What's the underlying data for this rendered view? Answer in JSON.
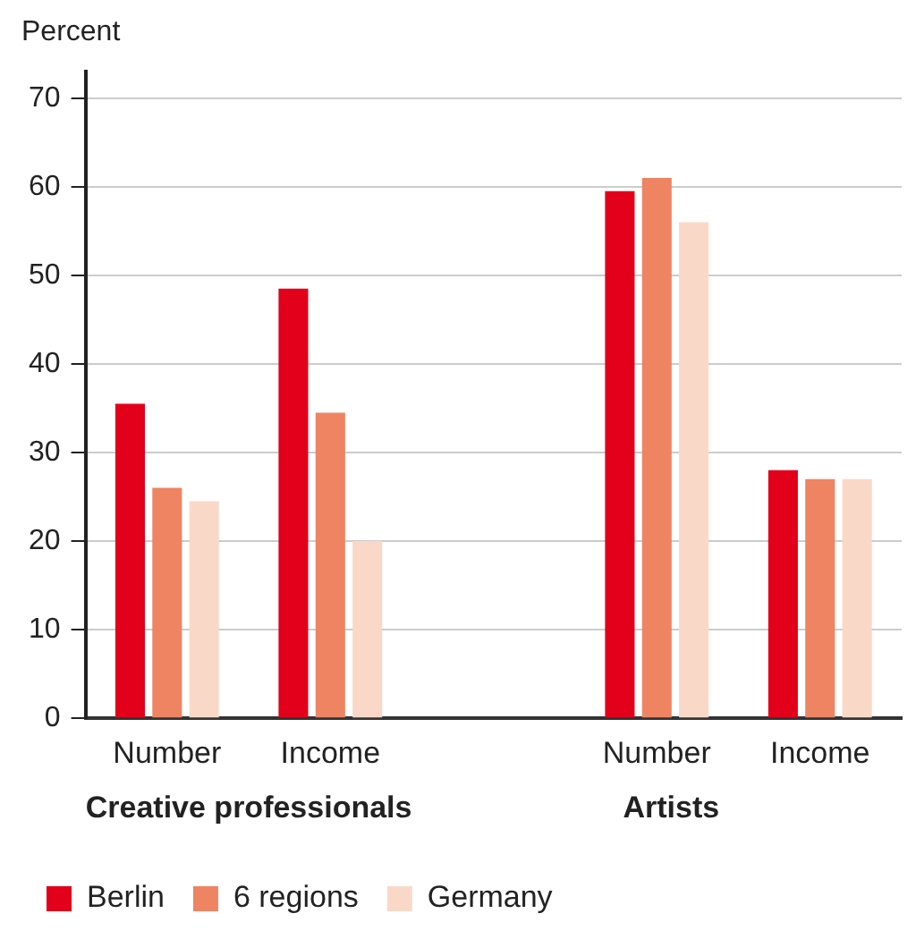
{
  "chart_data": {
    "type": "bar",
    "ylabel": "Percent",
    "categories": [
      "Number",
      "Income",
      null,
      "Number",
      "Income"
    ],
    "series": [
      {
        "name": "Berlin",
        "color": "#e2001a",
        "values": [
          35.5,
          48.5,
          null,
          59.5,
          28
        ]
      },
      {
        "name": "6 regions",
        "color": "#ee8462",
        "values": [
          26,
          34.5,
          null,
          61,
          27
        ]
      },
      {
        "name": "Germany",
        "color": "#fad8c8",
        "values": [
          24.5,
          20,
          null,
          56,
          27
        ]
      }
    ],
    "ylim": [
      0,
      73
    ],
    "yticks": [
      0,
      10,
      20,
      30,
      40,
      50,
      60,
      70
    ],
    "grid": "y",
    "legend": "bottom left",
    "annotations": [
      "Creative professionals",
      "Artists"
    ]
  }
}
